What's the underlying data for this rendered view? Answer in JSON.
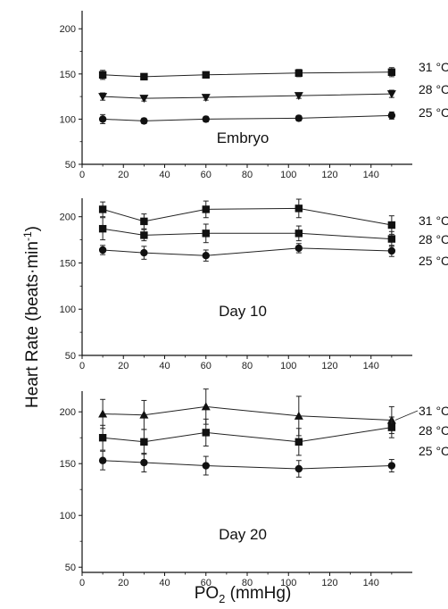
{
  "y_title": "Heart Rate (beats·min",
  "y_title_sup": "-1",
  "y_title_close": ")",
  "x_title_pre": "PO",
  "x_title_sub": "2",
  "x_title_post": " (mmHg)",
  "chart_data": [
    {
      "type": "line",
      "annotation": "Embryo",
      "x": [
        10,
        30,
        60,
        105,
        150
      ],
      "xlim": [
        0,
        160
      ],
      "ylim": [
        50,
        220
      ],
      "xticks": [
        "0",
        "20",
        "40",
        "60",
        "80",
        "100",
        "120",
        "140"
      ],
      "yticks": [
        "50",
        "100",
        "150",
        "200"
      ],
      "series": [
        {
          "name": "31 °C",
          "marker": "square",
          "values": [
            149,
            147,
            149,
            151,
            152
          ],
          "errors": [
            5,
            3,
            3,
            4,
            5
          ]
        },
        {
          "name": "28 °C",
          "marker": "triangle-down",
          "values": [
            125,
            123,
            124,
            126,
            128
          ],
          "errors": [
            4,
            3,
            3,
            3,
            4
          ]
        },
        {
          "name": "25 °C",
          "marker": "circle",
          "values": [
            100,
            98,
            100,
            101,
            104
          ],
          "errors": [
            5,
            3,
            3,
            3,
            4
          ]
        }
      ]
    },
    {
      "type": "line",
      "annotation": "Day 10",
      "x": [
        10,
        30,
        60,
        105,
        150
      ],
      "xlim": [
        0,
        160
      ],
      "ylim": [
        50,
        220
      ],
      "xticks": [
        "0",
        "20",
        "40",
        "60",
        "80",
        "100",
        "120",
        "140"
      ],
      "yticks": [
        "50",
        "100",
        "150",
        "200"
      ],
      "series": [
        {
          "name": "31 °C",
          "marker": "square",
          "values": [
            208,
            195,
            208,
            209,
            191
          ],
          "errors": [
            8,
            8,
            9,
            10,
            10
          ]
        },
        {
          "name": "28 °C",
          "marker": "square",
          "values": [
            187,
            180,
            182,
            182,
            176
          ],
          "errors": [
            12,
            6,
            10,
            8,
            8
          ]
        },
        {
          "name": "25 °C",
          "marker": "circle",
          "values": [
            164,
            161,
            158,
            166,
            163
          ],
          "errors": [
            5,
            7,
            6,
            5,
            6
          ]
        }
      ]
    },
    {
      "type": "line",
      "annotation": "Day 20",
      "x": [
        10,
        30,
        60,
        105,
        150
      ],
      "xlim": [
        0,
        160
      ],
      "ylim": [
        50,
        220
      ],
      "xticks": [
        "0",
        "20",
        "40",
        "60",
        "80",
        "100",
        "120",
        "140"
      ],
      "yticks": [
        "50",
        "100",
        "150",
        "200"
      ],
      "series": [
        {
          "name": "31 °C",
          "marker": "triangle-up",
          "values": [
            198,
            197,
            205,
            196,
            192
          ],
          "errors": [
            14,
            14,
            17,
            19,
            13
          ]
        },
        {
          "name": "28 °C",
          "marker": "square",
          "values": [
            175,
            171,
            180,
            171,
            185
          ],
          "errors": [
            12,
            12,
            13,
            13,
            10
          ]
        },
        {
          "name": "25 °C",
          "marker": "circle",
          "values": [
            153,
            151,
            148,
            145,
            148
          ],
          "errors": [
            9,
            9,
            9,
            8,
            6
          ]
        }
      ]
    }
  ]
}
